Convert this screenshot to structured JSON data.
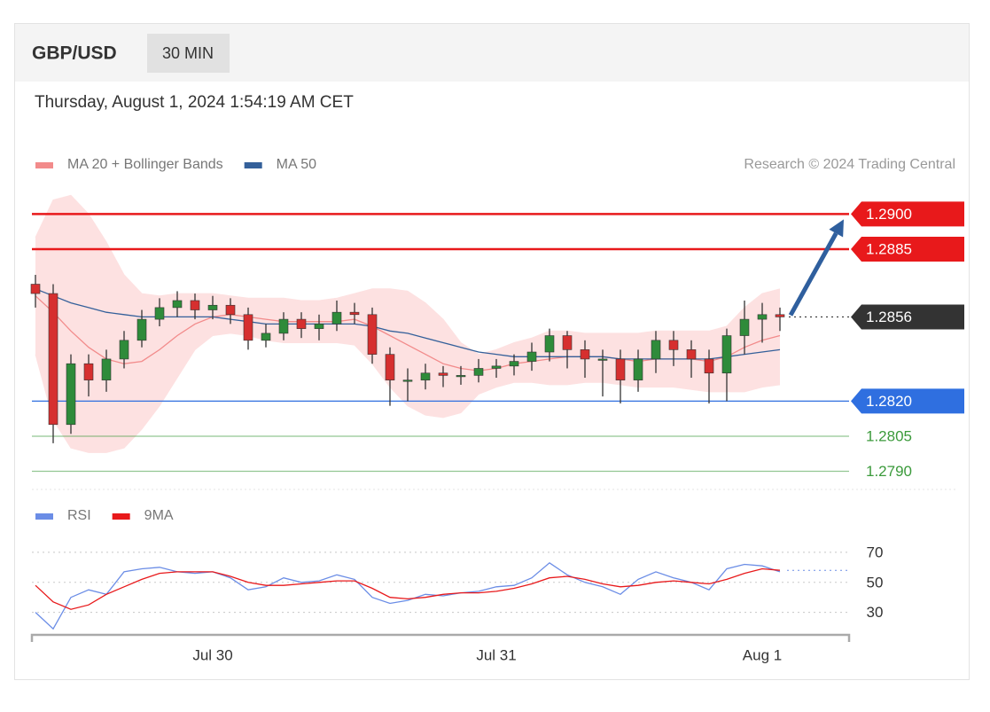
{
  "header": {
    "title": "GBP/USD",
    "interval": "30 MIN",
    "timestamp": "Thursday, August 1, 2024 1:54:19 AM CET",
    "source": "Research © 2024 Trading Central"
  },
  "chart_data": [
    {
      "type": "candlestick",
      "categories": [
        null,
        null,
        null,
        null,
        null,
        null,
        null,
        null,
        null,
        null,
        "Jul 30",
        null,
        null,
        null,
        null,
        null,
        null,
        null,
        null,
        null,
        null,
        null,
        null,
        null,
        null,
        null,
        "Jul 31",
        null,
        null,
        null,
        null,
        null,
        null,
        null,
        null,
        null,
        null,
        null,
        null,
        null,
        null,
        "Aug 1",
        null
      ],
      "open": [
        1.287,
        1.2866,
        1.281,
        1.2836,
        1.2829,
        1.2838,
        1.2846,
        1.2855,
        1.286,
        1.2863,
        1.2859,
        1.2861,
        1.2857,
        1.2846,
        1.2849,
        1.2855,
        1.2851,
        1.2853,
        1.2858,
        1.2857,
        1.284,
        1.2829,
        1.2829,
        1.2832,
        1.2831,
        1.2831,
        1.2834,
        1.2835,
        1.2837,
        1.2841,
        1.2848,
        1.2842,
        1.2838,
        1.2838,
        1.2829,
        1.2838,
        1.2846,
        1.2842,
        1.2838,
        1.2832,
        1.2848,
        1.2855,
        1.2857
      ],
      "high": [
        1.2874,
        1.287,
        1.284,
        1.284,
        1.2842,
        1.285,
        1.2859,
        1.2864,
        1.2867,
        1.2866,
        1.2865,
        1.2864,
        1.286,
        1.2853,
        1.2858,
        1.2858,
        1.2857,
        1.2863,
        1.2862,
        1.286,
        1.2843,
        1.2834,
        1.2836,
        1.2835,
        1.2835,
        1.2838,
        1.2838,
        1.284,
        1.2845,
        1.2851,
        1.285,
        1.2846,
        1.2842,
        1.2842,
        1.2842,
        1.285,
        1.285,
        1.2846,
        1.2842,
        1.2851,
        1.2863,
        1.2862,
        1.286
      ],
      "low": [
        1.286,
        1.2802,
        1.2806,
        1.2822,
        1.2824,
        1.2834,
        1.2843,
        1.2852,
        1.2856,
        1.2855,
        1.2855,
        1.2853,
        1.2842,
        1.2843,
        1.2846,
        1.2847,
        1.2846,
        1.285,
        1.2853,
        1.2836,
        1.2818,
        1.282,
        1.2825,
        1.2826,
        1.2827,
        1.2828,
        1.283,
        1.2831,
        1.2833,
        1.2837,
        1.2834,
        1.283,
        1.2822,
        1.2819,
        1.2824,
        1.2832,
        1.2835,
        1.283,
        1.2819,
        1.282,
        1.284,
        1.2845,
        1.285
      ],
      "close": [
        1.2866,
        1.281,
        1.2836,
        1.2829,
        1.2838,
        1.2846,
        1.2855,
        1.286,
        1.2863,
        1.2859,
        1.2861,
        1.2857,
        1.2846,
        1.2849,
        1.2855,
        1.2851,
        1.2853,
        1.2858,
        1.2857,
        1.284,
        1.2829,
        1.2829,
        1.2832,
        1.2831,
        1.2831,
        1.2834,
        1.2835,
        1.2837,
        1.2841,
        1.2848,
        1.2842,
        1.2838,
        1.2838,
        1.2829,
        1.2838,
        1.2846,
        1.2842,
        1.2838,
        1.2832,
        1.2848,
        1.2855,
        1.2857,
        1.2856
      ],
      "up_color": "#2e8b3a",
      "down_color": "#d62f2f",
      "series": [
        {
          "name": "MA 20 + Bollinger Bands",
          "color": "#f28b8b",
          "values": [
            1.2865,
            1.2858,
            1.285,
            1.2843,
            1.2838,
            1.2836,
            1.2837,
            1.2842,
            1.2848,
            1.2853,
            1.2856,
            1.2857,
            1.2856,
            1.2855,
            1.2854,
            1.2854,
            1.2854,
            1.2854,
            1.2855,
            1.2852,
            1.2848,
            1.2844,
            1.284,
            1.2836,
            1.2834,
            1.2833,
            1.2834,
            1.2836,
            1.2837,
            1.2838,
            1.2839,
            1.2839,
            1.2839,
            1.2838,
            1.2837,
            1.2838,
            1.2838,
            1.2838,
            1.2837,
            1.2839,
            1.2843,
            1.2846,
            1.2848
          ]
        },
        {
          "name": "MA 50",
          "color": "#34609a",
          "values": [
            1.2868,
            1.2865,
            1.2862,
            1.286,
            1.2858,
            1.2857,
            1.2856,
            1.2856,
            1.2856,
            1.2856,
            1.2856,
            1.2855,
            1.2854,
            1.2853,
            1.2853,
            1.2853,
            1.2853,
            1.2853,
            1.2853,
            1.2852,
            1.285,
            1.2849,
            1.2847,
            1.2845,
            1.2843,
            1.2841,
            1.284,
            1.2839,
            1.2839,
            1.2839,
            1.2839,
            1.2839,
            1.2839,
            1.2838,
            1.2838,
            1.2838,
            1.2838,
            1.2838,
            1.2838,
            1.2839,
            1.284,
            1.2841,
            1.2842
          ]
        }
      ],
      "bands": {
        "color": "#fde1e1",
        "upper": [
          1.289,
          1.2906,
          1.2908,
          1.29,
          1.2888,
          1.2874,
          1.2866,
          1.2865,
          1.2866,
          1.2866,
          1.2866,
          1.2865,
          1.2864,
          1.2864,
          1.2864,
          1.2863,
          1.2863,
          1.2864,
          1.2866,
          1.2868,
          1.2868,
          1.2867,
          1.2862,
          1.2855,
          1.2845,
          1.284,
          1.2842,
          1.2845,
          1.2847,
          1.285,
          1.285,
          1.2849,
          1.2849,
          1.2849,
          1.2849,
          1.285,
          1.285,
          1.285,
          1.285,
          1.2852,
          1.286,
          1.2866,
          1.2868
        ],
        "lower": [
          1.284,
          1.2812,
          1.28,
          1.2798,
          1.2798,
          1.28,
          1.2808,
          1.2818,
          1.283,
          1.2842,
          1.2848,
          1.2849,
          1.2848,
          1.2846,
          1.2845,
          1.2845,
          1.2845,
          1.2845,
          1.2844,
          1.2836,
          1.2826,
          1.2818,
          1.2814,
          1.2813,
          1.2815,
          1.2823,
          1.2826,
          1.2828,
          1.2828,
          1.2827,
          1.2827,
          1.2828,
          1.2828,
          1.2827,
          1.2826,
          1.2826,
          1.2826,
          1.2825,
          1.2824,
          1.2824,
          1.2824,
          1.2826,
          1.2827
        ]
      },
      "levels": [
        {
          "value": 1.29,
          "label": "1.2900",
          "color": "#e8191b",
          "label_style": "tag",
          "line": "solid"
        },
        {
          "value": 1.2885,
          "label": "1.2885",
          "color": "#e8191b",
          "label_style": "tag",
          "line": "solid"
        },
        {
          "value": 1.2856,
          "label": "1.2856",
          "color": "#333333",
          "label_style": "tag",
          "line": "dotted"
        },
        {
          "value": 1.282,
          "label": "1.2820",
          "color": "#2f6fe0",
          "label_style": "tag",
          "line": "solid"
        },
        {
          "value": 1.2805,
          "label": "1.2805",
          "color": "#3b9a3b",
          "label_style": "plain",
          "line": "solid"
        },
        {
          "value": 1.279,
          "label": "1.2790",
          "color": "#3b9a3b",
          "label_style": "plain",
          "line": "solid"
        }
      ],
      "ylim": [
        1.2783,
        1.291
      ]
    },
    {
      "type": "line",
      "series": [
        {
          "name": "RSI",
          "color": "#6b8de6",
          "values": [
            30,
            19,
            40,
            45,
            42,
            57,
            59,
            60,
            57,
            56,
            57,
            53,
            45,
            47,
            53,
            50,
            51,
            55,
            52,
            40,
            36,
            38,
            42,
            41,
            43,
            44,
            47,
            48,
            53,
            63,
            55,
            50,
            47,
            42,
            52,
            57,
            53,
            50,
            45,
            59,
            62,
            61,
            57
          ]
        },
        {
          "name": "9MA",
          "color": "#e8191b",
          "values": [
            48,
            37,
            32,
            35,
            42,
            47,
            52,
            56,
            57,
            57,
            57,
            54,
            50,
            48,
            48,
            49,
            50,
            51,
            51,
            46,
            40,
            39,
            40,
            42,
            43,
            43,
            44,
            46,
            49,
            53,
            54,
            52,
            49,
            47,
            48,
            50,
            51,
            50,
            49,
            52,
            56,
            59,
            58
          ]
        }
      ],
      "ylim": [
        15,
        80
      ],
      "yticks": [
        70,
        50,
        30
      ],
      "grid": true
    }
  ]
}
